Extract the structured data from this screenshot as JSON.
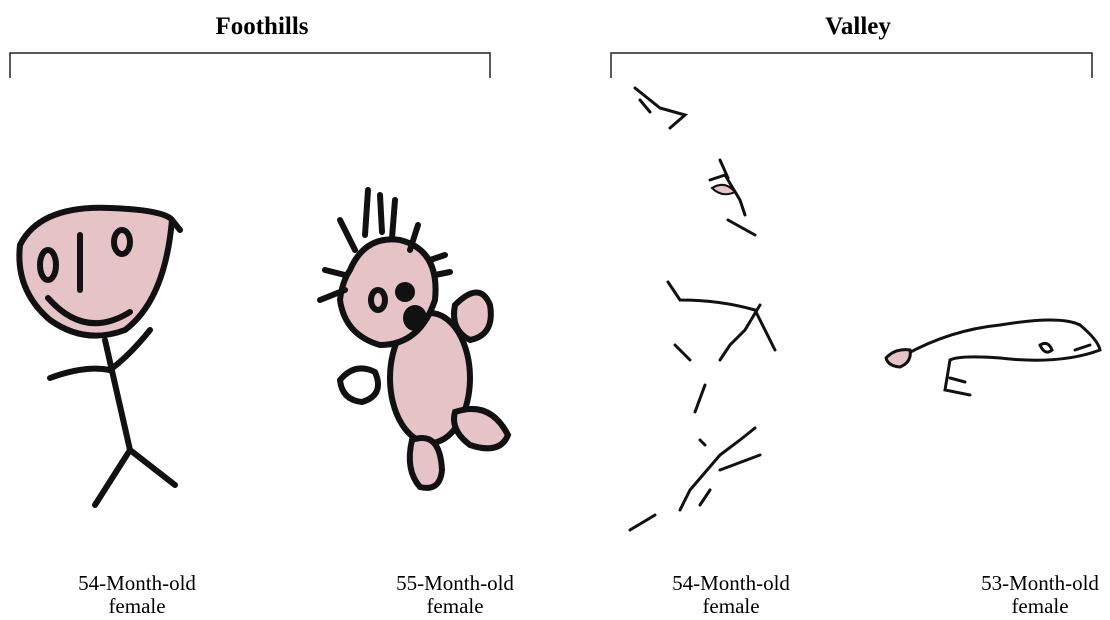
{
  "groups": [
    {
      "title": "Foothills",
      "panels": [
        {
          "caption": [
            "54-Month-old",
            "female"
          ]
        },
        {
          "caption": [
            "55-Month-old",
            "female"
          ]
        }
      ]
    },
    {
      "title": "Valley",
      "panels": [
        {
          "caption": [
            "54-Month-old",
            "female"
          ]
        },
        {
          "caption": [
            "53-Month-old",
            "female"
          ]
        }
      ]
    }
  ]
}
